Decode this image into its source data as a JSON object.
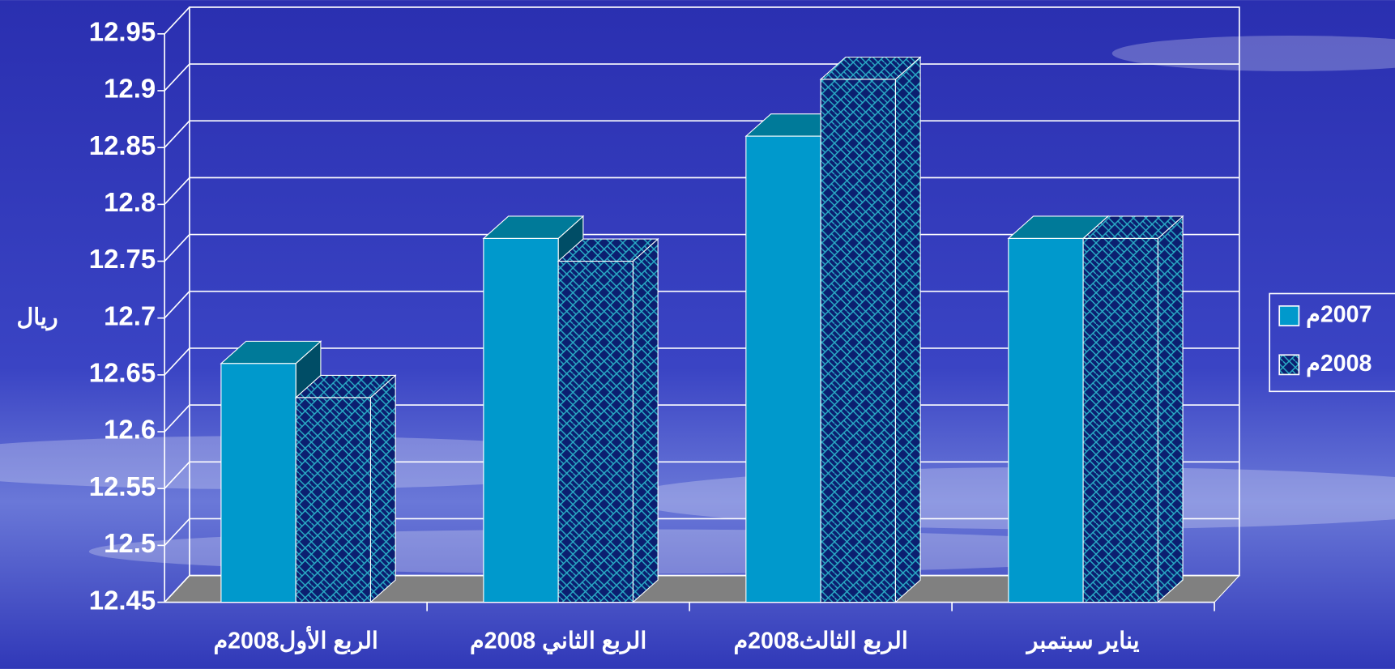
{
  "chart_data": {
    "type": "bar3d",
    "y_label": "ريال",
    "categories": [
      "الربع الأول2008م",
      "الربع الثاني 2008م",
      "الربع الثالث2008م",
      "يناير سبتمبر"
    ],
    "series": [
      {
        "name": "2007م",
        "color": "#0099cc",
        "values": [
          12.66,
          12.77,
          12.86,
          12.77
        ]
      },
      {
        "name": "2008م",
        "color": "#0b1f70",
        "values": [
          12.63,
          12.75,
          12.91,
          12.77
        ]
      }
    ],
    "ylim": [
      12.45,
      12.95
    ],
    "yticks": [
      12.45,
      12.5,
      12.55,
      12.6,
      12.65,
      12.7,
      12.75,
      12.8,
      12.85,
      12.9,
      12.95
    ],
    "grid": true
  }
}
